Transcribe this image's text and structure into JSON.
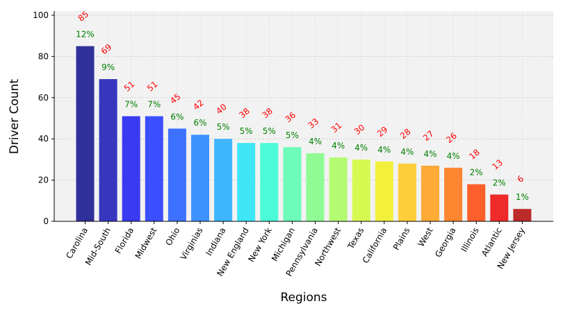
{
  "chart_data": {
    "type": "bar",
    "xlabel": "Regions",
    "ylabel": "Driver Count",
    "ylim": [
      0,
      102
    ],
    "yticks": [
      0,
      20,
      40,
      60,
      80,
      100
    ],
    "grid": true,
    "categories": [
      "Carolina",
      "Mid-South",
      "Florida",
      "Midwest",
      "Ohio",
      "Virginias",
      "Indiana",
      "New England",
      "New York",
      "Michigan",
      "Pennsylvania",
      "Northwest",
      "Texas",
      "California",
      "Plains",
      "West",
      "Georgia",
      "Illinois",
      "Atlantic",
      "New Jersey"
    ],
    "values": [
      85,
      69,
      51,
      51,
      45,
      42,
      40,
      38,
      38,
      36,
      33,
      31,
      30,
      29,
      28,
      27,
      26,
      18,
      13,
      6
    ],
    "percent_labels": [
      "12%",
      "9%",
      "7%",
      "7%",
      "6%",
      "6%",
      "5%",
      "5%",
      "5%",
      "5%",
      "4%",
      "4%",
      "4%",
      "4%",
      "4%",
      "4%",
      "4%",
      "2%",
      "2%",
      "1%"
    ],
    "bar_colors": [
      "#30309a",
      "#3636bf",
      "#3a3af0",
      "#3c4fff",
      "#3d71ff",
      "#3e93ff",
      "#3fb6ff",
      "#3ee5f5",
      "#4bfad8",
      "#6dfcb9",
      "#90fb95",
      "#b3fb72",
      "#d6f952",
      "#f3f03b",
      "#fdce3a",
      "#fdaa36",
      "#fd8630",
      "#fd5f2b",
      "#ee2a2a",
      "#bd2a2a"
    ],
    "value_label_color": "#ff0000",
    "percent_label_color": "#008000",
    "plot_background": "#f2f2f2"
  }
}
